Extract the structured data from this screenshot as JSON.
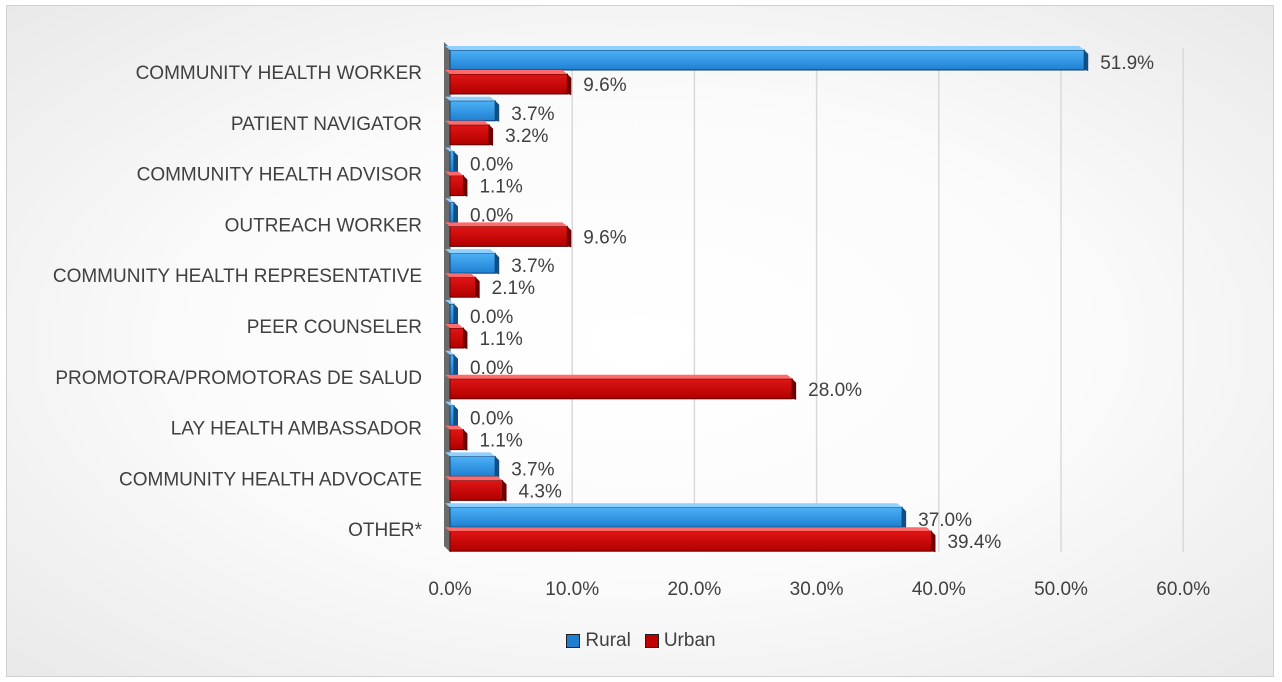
{
  "chart_data": {
    "type": "bar",
    "orientation": "horizontal",
    "categories": [
      "COMMUNITY HEALTH WORKER",
      "PATIENT NAVIGATOR",
      "COMMUNITY HEALTH ADVISOR",
      "OUTREACH WORKER",
      "COMMUNITY HEALTH REPRESENTATIVE",
      "PEER COUNSELER",
      "PROMOTORA/PROMOTORAS DE SALUD",
      "LAY HEALTH AMBASSADOR",
      "COMMUNITY HEALTH ADVOCATE",
      "OTHER*"
    ],
    "series": [
      {
        "name": "Rural",
        "color": "#1e7fd1",
        "values": [
          51.9,
          3.7,
          0.0,
          0.0,
          3.7,
          0.0,
          0.0,
          0.0,
          3.7,
          37.0
        ],
        "labels": [
          "51.9%",
          "3.7%",
          "0.0%",
          "0.0%",
          "3.7%",
          "0.0%",
          "0.0%",
          "0.0%",
          "3.7%",
          "37.0%"
        ]
      },
      {
        "name": "Urban",
        "color": "#c00000",
        "values": [
          9.6,
          3.2,
          1.1,
          9.6,
          2.1,
          1.1,
          28.0,
          1.1,
          4.3,
          39.4
        ],
        "labels": [
          "9.6%",
          "3.2%",
          "1.1%",
          "9.6%",
          "2.1%",
          "1.1%",
          "28.0%",
          "1.1%",
          "4.3%",
          "39.4%"
        ]
      }
    ],
    "xlim": [
      0,
      60
    ],
    "xticks": [
      "0.0%",
      "10.0%",
      "20.0%",
      "30.0%",
      "40.0%",
      "50.0%",
      "60.0%"
    ],
    "grid": true,
    "legend": "bottom"
  }
}
